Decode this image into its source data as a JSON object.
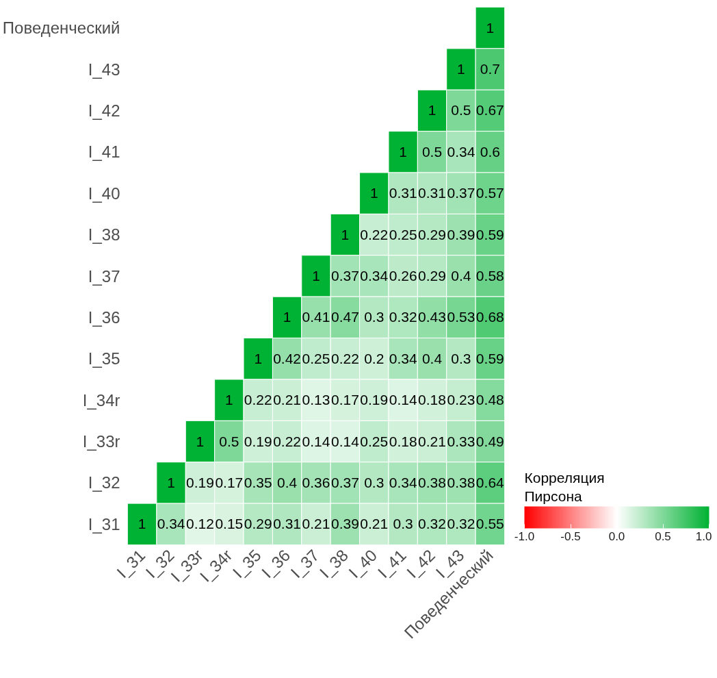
{
  "chart_data": {
    "type": "heatmap",
    "clabel": "Корреляция\nПирсона",
    "categories": [
      "I_31",
      "I_32",
      "I_33r",
      "I_34r",
      "I_35",
      "I_36",
      "I_37",
      "I_38",
      "I_40",
      "I_41",
      "I_42",
      "I_43",
      "Поведенческий"
    ],
    "y_categories": [
      "Поведенческий",
      "I_43",
      "I_42",
      "I_41",
      "I_40",
      "I_38",
      "I_37",
      "I_36",
      "I_35",
      "I_34r",
      "I_33r",
      "I_32",
      "I_31"
    ],
    "cells": [
      [
        null,
        null,
        null,
        null,
        null,
        null,
        null,
        null,
        null,
        null,
        null,
        null,
        1
      ],
      [
        null,
        null,
        null,
        null,
        null,
        null,
        null,
        null,
        null,
        null,
        null,
        1,
        0.7
      ],
      [
        null,
        null,
        null,
        null,
        null,
        null,
        null,
        null,
        null,
        null,
        1,
        0.5,
        0.67
      ],
      [
        null,
        null,
        null,
        null,
        null,
        null,
        null,
        null,
        null,
        1,
        0.5,
        0.34,
        0.6
      ],
      [
        null,
        null,
        null,
        null,
        null,
        null,
        null,
        null,
        1,
        0.31,
        0.31,
        0.37,
        0.57
      ],
      [
        null,
        null,
        null,
        null,
        null,
        null,
        null,
        1,
        0.22,
        0.25,
        0.29,
        0.39,
        0.59
      ],
      [
        null,
        null,
        null,
        null,
        null,
        null,
        1,
        0.37,
        0.34,
        0.26,
        0.29,
        0.4,
        0.58
      ],
      [
        null,
        null,
        null,
        null,
        null,
        1,
        0.41,
        0.47,
        0.3,
        0.32,
        0.43,
        0.53,
        0.68
      ],
      [
        null,
        null,
        null,
        null,
        1,
        0.42,
        0.25,
        0.22,
        0.2,
        0.34,
        0.4,
        0.3,
        0.59
      ],
      [
        null,
        null,
        null,
        1,
        0.22,
        0.21,
        0.13,
        0.17,
        0.19,
        0.14,
        0.18,
        0.23,
        0.48
      ],
      [
        null,
        null,
        1,
        0.5,
        0.19,
        0.22,
        0.14,
        0.14,
        0.25,
        0.18,
        0.21,
        0.33,
        0.49
      ],
      [
        null,
        1,
        0.19,
        0.17,
        0.35,
        0.4,
        0.36,
        0.37,
        0.3,
        0.34,
        0.38,
        0.38,
        0.64
      ],
      [
        1,
        0.34,
        0.12,
        0.15,
        0.29,
        0.31,
        0.21,
        0.39,
        0.21,
        0.3,
        0.32,
        0.32,
        0.55
      ]
    ],
    "clim": [
      -1,
      1
    ],
    "cticks": [
      {
        "value": -1,
        "label": "-1.0"
      },
      {
        "value": -0.5,
        "label": "-0.5"
      },
      {
        "value": 0,
        "label": "0.0"
      },
      {
        "value": 0.5,
        "label": "0.5"
      },
      {
        "value": 1,
        "label": "1.0"
      }
    ],
    "data_labels": true
  }
}
